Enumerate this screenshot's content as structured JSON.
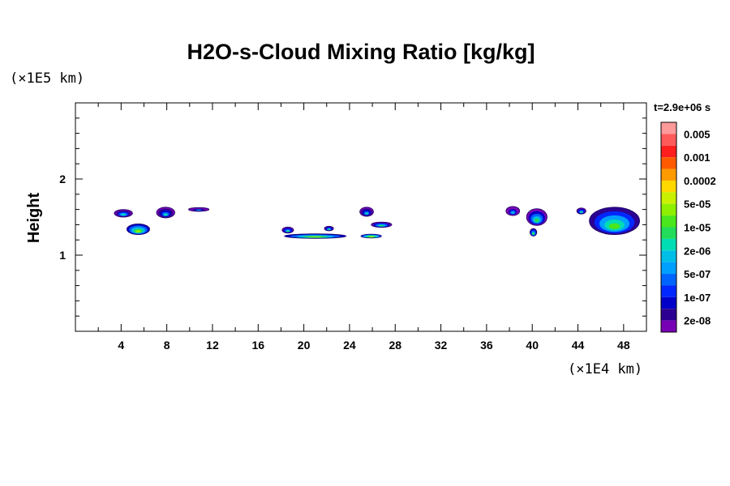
{
  "chart_data": {
    "type": "heatmap",
    "title": "H2O-s-Cloud Mixing Ratio [kg/kg]",
    "ylabel": "Height",
    "x_unit_label": "(×1E4 km)",
    "y_unit_label": "(×1E5 km)",
    "time_label": "t=2.9e+06 s",
    "xlim": [
      0,
      50
    ],
    "ylim": [
      0,
      3
    ],
    "x_ticks": [
      4,
      8,
      12,
      16,
      20,
      24,
      28,
      32,
      36,
      40,
      44,
      48
    ],
    "x_tick_labels": [
      "4",
      "8",
      "12",
      "16",
      "20",
      "24",
      "28",
      "32",
      "36",
      "40",
      "44",
      "48"
    ],
    "y_ticks": [
      1,
      2
    ],
    "y_tick_labels": [
      "1",
      "2"
    ],
    "colorbar": {
      "labels": [
        "0.005",
        "0.001",
        "0.0002",
        "5e-05",
        "1e-05",
        "2e-06",
        "5e-07",
        "1e-07",
        "2e-08"
      ],
      "colors": [
        "#ff9a9a",
        "#ff5a5a",
        "#ff1e1e",
        "#ff5a00",
        "#ff9a00",
        "#ffd800",
        "#c8f000",
        "#8ef000",
        "#4ae61e",
        "#22dc5a",
        "#00dcb4",
        "#00bee6",
        "#00a0ff",
        "#0064ff",
        "#0028ff",
        "#0000c8",
        "#2c0090",
        "#7800b4"
      ]
    },
    "cloud_patches": [
      {
        "x": 4.2,
        "y": 1.55,
        "rx": 0.8,
        "ry": 0.05,
        "level": 0.25
      },
      {
        "x": 5.5,
        "y": 1.34,
        "rx": 1.0,
        "ry": 0.07,
        "level": 0.5
      },
      {
        "x": 7.9,
        "y": 1.56,
        "rx": 0.8,
        "ry": 0.07,
        "level": 0.2
      },
      {
        "x": 10.8,
        "y": 1.6,
        "rx": 0.9,
        "ry": 0.025,
        "level": 0.1
      },
      {
        "x": 18.6,
        "y": 1.33,
        "rx": 0.5,
        "ry": 0.04,
        "level": 0.3
      },
      {
        "x": 21.0,
        "y": 1.25,
        "rx": 2.7,
        "ry": 0.03,
        "level": 0.55
      },
      {
        "x": 22.2,
        "y": 1.35,
        "rx": 0.4,
        "ry": 0.03,
        "level": 0.3
      },
      {
        "x": 25.5,
        "y": 1.57,
        "rx": 0.6,
        "ry": 0.06,
        "level": 0.2
      },
      {
        "x": 26.8,
        "y": 1.4,
        "rx": 0.9,
        "ry": 0.035,
        "level": 0.35
      },
      {
        "x": 25.9,
        "y": 1.25,
        "rx": 0.9,
        "ry": 0.025,
        "level": 0.6
      },
      {
        "x": 38.3,
        "y": 1.58,
        "rx": 0.6,
        "ry": 0.06,
        "level": 0.15
      },
      {
        "x": 40.4,
        "y": 1.5,
        "rx": 0.9,
        "ry": 0.11,
        "level": 0.35
      },
      {
        "x": 40.1,
        "y": 1.3,
        "rx": 0.3,
        "ry": 0.05,
        "level": 0.4
      },
      {
        "x": 44.3,
        "y": 1.58,
        "rx": 0.4,
        "ry": 0.04,
        "level": 0.3
      },
      {
        "x": 47.2,
        "y": 1.45,
        "rx": 2.2,
        "ry": 0.18,
        "level": 0.45
      }
    ]
  }
}
